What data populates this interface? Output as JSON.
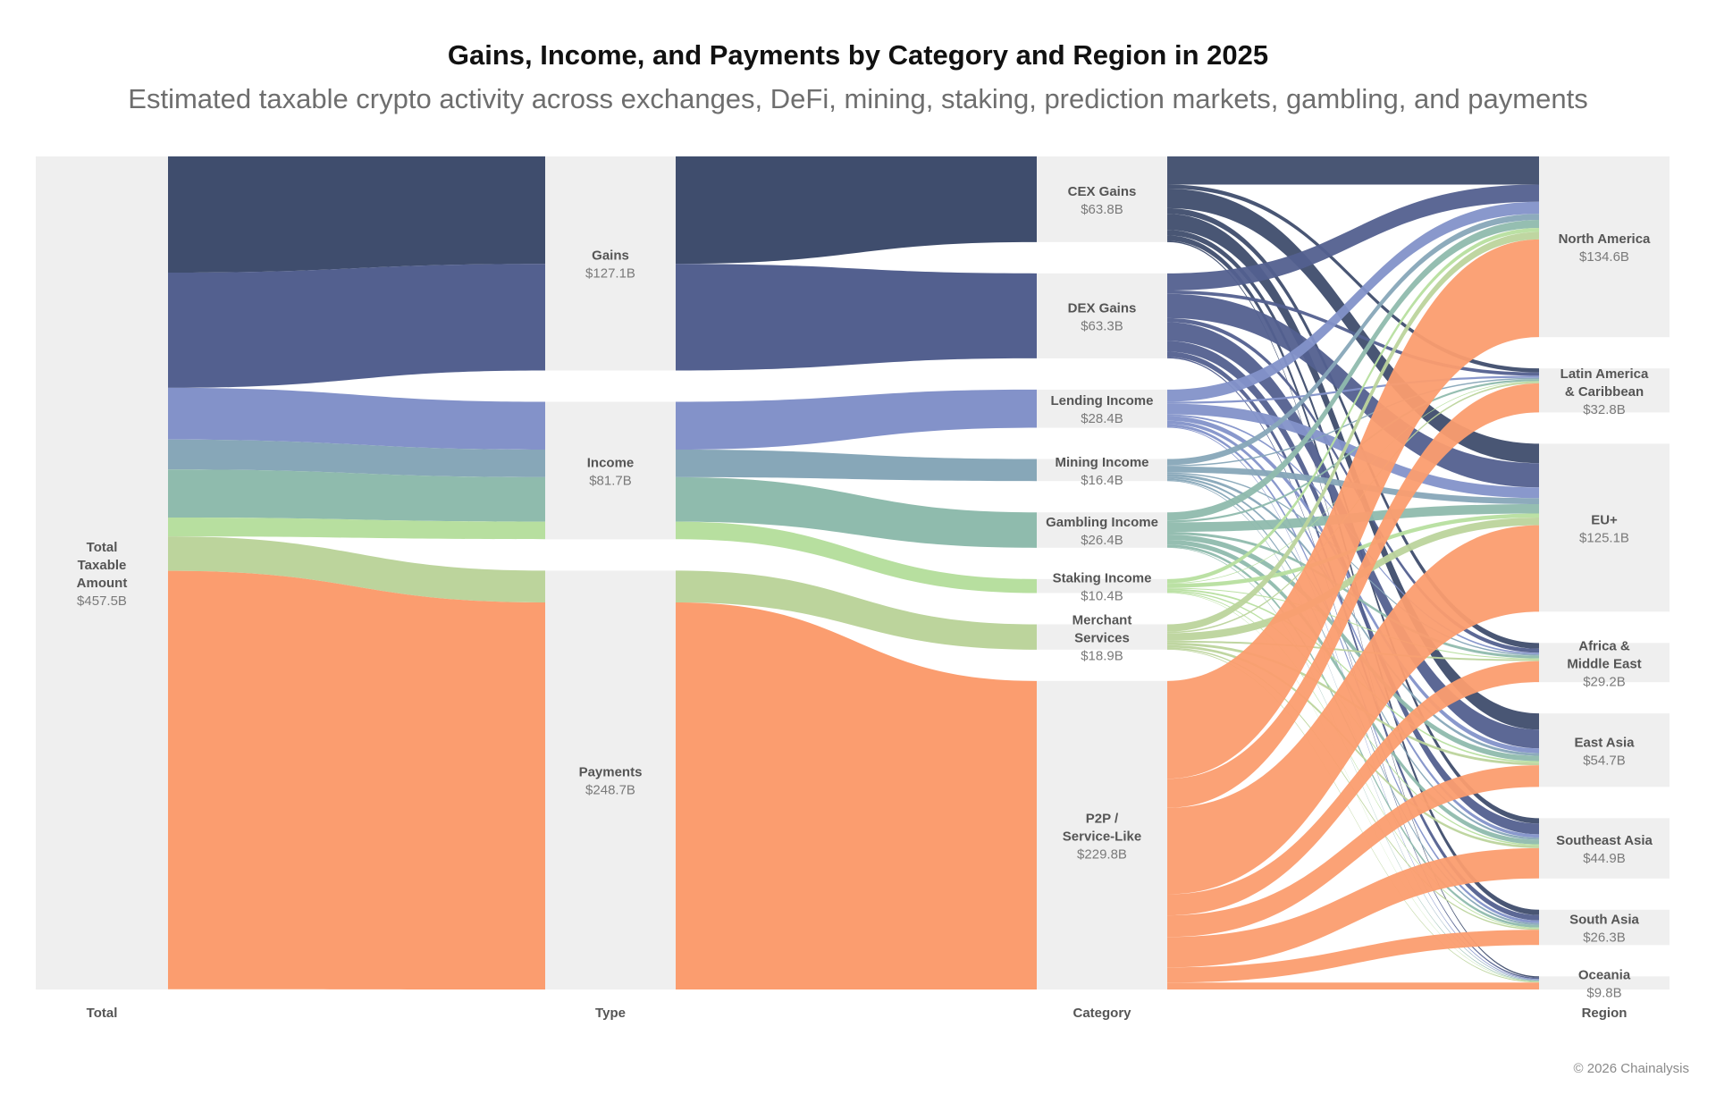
{
  "title": "Gains, Income, and Payments by Category and Region in 2025",
  "subtitle": "Estimated taxable crypto activity across exchanges, DeFi, mining, staking, prediction markets, gambling, and payments",
  "copyright": "© 2026 Chainalysis",
  "columns": [
    {
      "id": "total",
      "label": "Total"
    },
    {
      "id": "type",
      "label": "Type"
    },
    {
      "id": "category",
      "label": "Category"
    },
    {
      "id": "region",
      "label": "Region"
    }
  ],
  "nodes": {
    "total": [
      {
        "id": "total",
        "name": "Total Taxable Amount",
        "value_label": "$457.5B",
        "value": 457.5
      }
    ],
    "type": [
      {
        "id": "gains",
        "name": "Gains",
        "value_label": "$127.1B",
        "value": 127.1
      },
      {
        "id": "income",
        "name": "Income",
        "value_label": "$81.7B",
        "value": 81.7
      },
      {
        "id": "payments",
        "name": "Payments",
        "value_label": "$248.7B",
        "value": 248.7
      }
    ],
    "category": [
      {
        "id": "cex",
        "name": "CEX Gains",
        "value_label": "$63.8B",
        "value": 63.8,
        "type": "gains",
        "color": "#3f4d6d"
      },
      {
        "id": "dex",
        "name": "DEX Gains",
        "value_label": "$63.3B",
        "value": 63.3,
        "type": "gains",
        "color": "#53608f"
      },
      {
        "id": "lending",
        "name": "Lending Income",
        "value_label": "$28.4B",
        "value": 28.4,
        "type": "income",
        "color": "#8392c9"
      },
      {
        "id": "mining",
        "name": "Mining Income",
        "value_label": "$16.4B",
        "value": 16.4,
        "type": "income",
        "color": "#87a7b8"
      },
      {
        "id": "gambling",
        "name": "Gambling Income",
        "value_label": "$26.4B",
        "value": 26.4,
        "type": "income",
        "color": "#8fbbad"
      },
      {
        "id": "staking",
        "name": "Staking Income",
        "value_label": "$10.4B",
        "value": 10.4,
        "type": "income",
        "color": "#b7df9f"
      },
      {
        "id": "merchant",
        "name": "Merchant Services",
        "value_label": "$18.9B",
        "value": 18.9,
        "type": "payments",
        "color": "#bcd49c"
      },
      {
        "id": "p2p",
        "name": "P2P / Service-Like",
        "value_label": "$229.8B",
        "value": 229.8,
        "type": "payments",
        "color": "#fb9d6f"
      }
    ],
    "region": [
      {
        "id": "na",
        "name": "North America",
        "value_label": "$134.6B",
        "value": 134.6
      },
      {
        "id": "latam",
        "name": "Latin America & Caribbean",
        "value_label": "$32.8B",
        "value": 32.8
      },
      {
        "id": "eu",
        "name": "EU+",
        "value_label": "$125.1B",
        "value": 125.1
      },
      {
        "id": "africa",
        "name": "Africa & Middle East",
        "value_label": "$29.2B",
        "value": 29.2
      },
      {
        "id": "eastasia",
        "name": "East Asia",
        "value_label": "$54.7B",
        "value": 54.7
      },
      {
        "id": "seasia",
        "name": "Southeast Asia",
        "value_label": "$44.9B",
        "value": 44.9
      },
      {
        "id": "southasia",
        "name": "South Asia",
        "value_label": "$26.3B",
        "value": 26.3
      },
      {
        "id": "oceania",
        "name": "Oceania",
        "value_label": "$9.8B",
        "value": 9.8
      }
    ]
  },
  "category_to_region": {
    "cex": {
      "na": 21.0,
      "latam": 3.0,
      "eu": 14.5,
      "africa": 4.3,
      "eastasia": 12.0,
      "seasia": 4.0,
      "southasia": 4.0,
      "oceania": 1.0
    },
    "dex": {
      "na": 12.8,
      "latam": 2.5,
      "eu": 18.0,
      "africa": 3.0,
      "eastasia": 14.0,
      "seasia": 8.0,
      "southasia": 4.0,
      "oceania": 1.0
    },
    "lending": {
      "na": 9.0,
      "latam": 1.5,
      "eu": 8.0,
      "africa": 1.2,
      "eastasia": 3.5,
      "seasia": 2.5,
      "southasia": 2.0,
      "oceania": 0.7
    },
    "mining": {
      "na": 4.5,
      "latam": 1.0,
      "eu": 4.5,
      "africa": 1.0,
      "eastasia": 2.0,
      "seasia": 1.5,
      "southasia": 1.4,
      "oceania": 0.5
    },
    "gambling": {
      "na": 6.0,
      "latam": 1.5,
      "eu": 7.0,
      "africa": 2.0,
      "eastasia": 4.0,
      "seasia": 3.5,
      "southasia": 1.9,
      "oceania": 0.5
    },
    "staking": {
      "na": 3.0,
      "latam": 0.5,
      "eu": 3.0,
      "africa": 0.7,
      "eastasia": 1.2,
      "seasia": 1.0,
      "southasia": 0.7,
      "oceania": 0.3
    },
    "merchant": {
      "na": 5.5,
      "latam": 1.1,
      "eu": 5.7,
      "africa": 1.3,
      "eastasia": 1.9,
      "seasia": 1.8,
      "southasia": 1.0,
      "oceania": 0.6
    },
    "p2p": {
      "na": 72.8,
      "latam": 21.7,
      "eu": 64.4,
      "africa": 15.7,
      "eastasia": 16.1,
      "seasia": 22.6,
      "southasia": 11.3,
      "oceania": 5.2
    }
  }
}
